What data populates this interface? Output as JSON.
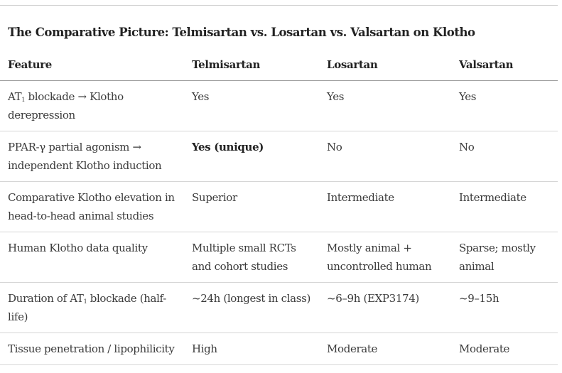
{
  "heading": "The Comparative Picture: Telmisartan vs. Losartan vs. Valsartan on Klotho",
  "columns": [
    "Feature",
    "Telmisartan",
    "Losartan",
    "Valsartan"
  ],
  "rows": [
    {
      "feature_pre": "AT",
      "feature_sub": "1",
      "feature_post": " blockade → Klotho derepression",
      "telmisartan": "Yes",
      "losartan": "Yes",
      "valsartan": "Yes"
    },
    {
      "feature": "PPAR-γ partial agonism → independent Klotho induction",
      "telmisartan": "Yes (unique)",
      "losartan": "No",
      "valsartan": "No"
    },
    {
      "feature": "Comparative Klotho elevation in head-to-head animal studies",
      "telmisartan": "Superior",
      "losartan": "Intermediate",
      "valsartan": "Intermediate"
    },
    {
      "feature": "Human Klotho data quality",
      "telmisartan": "Multiple small RCTs and cohort studies",
      "losartan": "Mostly animal + uncontrolled human",
      "valsartan": "Sparse; mostly animal"
    },
    {
      "feature_pre": "Duration of AT",
      "feature_sub": "1",
      "feature_post": " blockade (half-life)",
      "telmisartan": "~24h (longest in class)",
      "losartan": "~6–9h (EXP3174)",
      "valsartan": "~9–15h"
    },
    {
      "feature": "Tissue penetration / lipophilicity",
      "telmisartan": "High",
      "losartan": "Moderate",
      "valsartan": "Moderate"
    }
  ]
}
